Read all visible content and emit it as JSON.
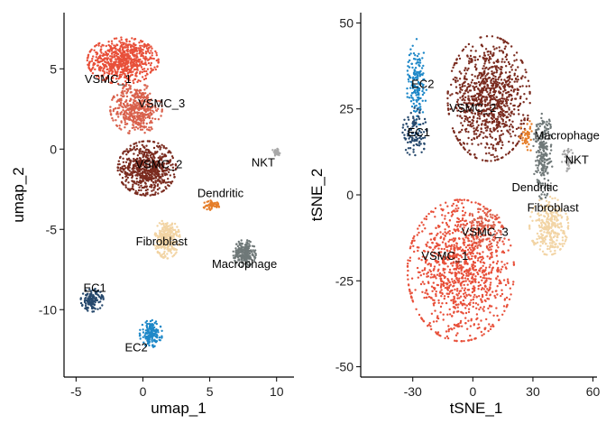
{
  "chart_data": [
    {
      "type": "scatter",
      "xlabel": "umap_1",
      "ylabel": "umap_2",
      "xlim": [
        -5.9,
        11.3
      ],
      "ylim": [
        -14.2,
        8.5
      ],
      "xticks": [
        -5,
        0,
        5,
        10
      ],
      "yticks": [
        5,
        0,
        -5,
        -10
      ],
      "ytick_labels": [
        "5",
        "0",
        "-5",
        "-10"
      ],
      "clusters": [
        {
          "name": "VSMC_1",
          "color": "#E8503A",
          "center": [
            -1.5,
            5.5
          ],
          "spread": [
            2.2,
            1.2
          ],
          "n": 700,
          "label_at": [
            -2.6,
            4.3
          ]
        },
        {
          "name": "VSMC_3",
          "color": "#D9614C",
          "center": [
            -0.5,
            2.5
          ],
          "spread": [
            1.6,
            1.3
          ],
          "n": 450,
          "label_at": [
            1.4,
            2.8
          ]
        },
        {
          "name": "VSMC_2",
          "color": "#7A2B1F",
          "center": [
            0.3,
            -1.2
          ],
          "spread": [
            1.8,
            1.4
          ],
          "n": 650,
          "label_at": [
            1.2,
            -1.0
          ]
        },
        {
          "name": "Fibroblast",
          "color": "#F2D4A4",
          "center": [
            1.8,
            -5.6
          ],
          "spread": [
            0.8,
            1.0
          ],
          "n": 300,
          "label_at": [
            1.4,
            -5.8
          ]
        },
        {
          "name": "Dendritic",
          "color": "#E57E2A",
          "center": [
            5.2,
            -3.5
          ],
          "spread": [
            0.6,
            0.25
          ],
          "n": 50,
          "label_at": [
            5.8,
            -2.8
          ]
        },
        {
          "name": "Macrophage",
          "color": "#6F7878",
          "center": [
            7.6,
            -6.5
          ],
          "spread": [
            0.7,
            0.7
          ],
          "n": 220,
          "label_at": [
            7.6,
            -7.2
          ]
        },
        {
          "name": "NKT",
          "color": "#A8A8A8",
          "center": [
            10.0,
            -0.2
          ],
          "spread": [
            0.3,
            0.2
          ],
          "n": 40,
          "label_at": [
            9.0,
            -0.9
          ]
        },
        {
          "name": "EC1",
          "color": "#27496D",
          "center": [
            -3.8,
            -9.4
          ],
          "spread": [
            0.7,
            0.6
          ],
          "n": 140,
          "label_at": [
            -3.6,
            -8.7
          ]
        },
        {
          "name": "EC2",
          "color": "#1E88C8",
          "center": [
            0.6,
            -11.5
          ],
          "spread": [
            0.7,
            0.7
          ],
          "n": 170,
          "label_at": [
            -0.5,
            -12.4
          ]
        }
      ]
    },
    {
      "type": "scatter",
      "xlabel": "tSNE_1",
      "ylabel": "tSNE_2",
      "xlim": [
        -56,
        62
      ],
      "ylim": [
        -53,
        53
      ],
      "xticks": [
        -30,
        0,
        30,
        60
      ],
      "yticks": [
        50,
        25,
        0,
        -25,
        -50
      ],
      "ytick_labels": [
        "50",
        "25",
        "0",
        "-25",
        "-50"
      ],
      "clusters": [
        {
          "name": "VSMC_1",
          "color": "#E8503A",
          "center": [
            -6,
            -22
          ],
          "spread": [
            22,
            17
          ],
          "n": 1100,
          "label_at": [
            -14,
            -18
          ]
        },
        {
          "name": "VSMC_3",
          "color": "#D9614C",
          "center": [
            5,
            -10
          ],
          "spread": [
            8,
            5
          ],
          "n": 120,
          "label_at": [
            6,
            -11
          ]
        },
        {
          "name": "VSMC_2",
          "color": "#7A2B1F",
          "center": [
            8,
            28
          ],
          "spread": [
            17,
            15
          ],
          "n": 950,
          "label_at": [
            0,
            25
          ]
        },
        {
          "name": "EC2",
          "color": "#1E88C8",
          "center": [
            -28,
            32
          ],
          "spread": [
            4,
            11
          ],
          "n": 160,
          "label_at": [
            -25,
            32
          ]
        },
        {
          "name": "EC1",
          "color": "#27496D",
          "center": [
            -29,
            18
          ],
          "spread": [
            5,
            6
          ],
          "n": 110,
          "label_at": [
            -27,
            18
          ]
        },
        {
          "name": "Fibroblast",
          "color": "#F2D4A4",
          "center": [
            38,
            -9
          ],
          "spread": [
            8,
            7
          ],
          "n": 280,
          "label_at": [
            40,
            -4
          ]
        },
        {
          "name": "Macrophage",
          "color": "#6F7878",
          "center": [
            35,
            12
          ],
          "spread": [
            4,
            11
          ],
          "n": 230,
          "label_at": [
            47,
            17
          ]
        },
        {
          "name": "Dendritic",
          "color": "#E57E2A",
          "center": [
            27,
            17
          ],
          "spread": [
            3,
            4
          ],
          "n": 45,
          "label_at": [
            31,
            2
          ]
        },
        {
          "name": "NKT",
          "color": "#A8A8A8",
          "center": [
            48,
            10
          ],
          "spread": [
            3,
            3
          ],
          "n": 40,
          "label_at": [
            52,
            10
          ]
        }
      ]
    }
  ]
}
